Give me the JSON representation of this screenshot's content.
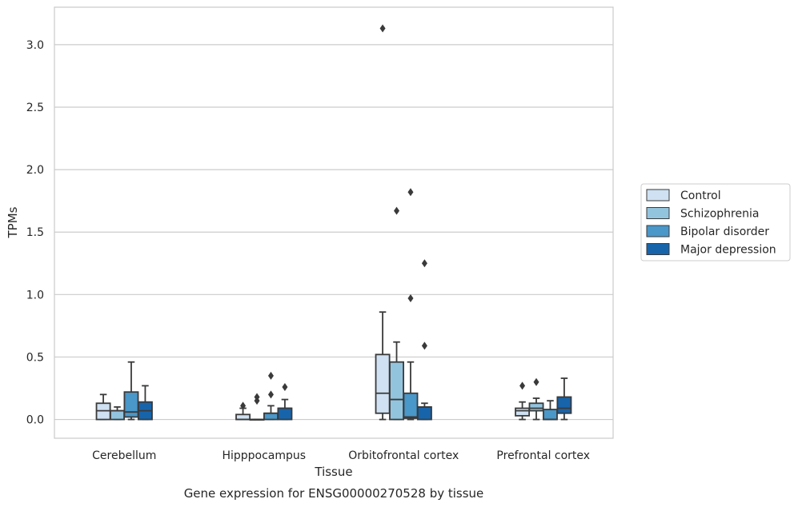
{
  "caption": "Gene expression for ENSG00000270528 by tissue",
  "colors": {
    "Control": "#cfe1f2",
    "Schizophrenia": "#93c4de",
    "Bipolar disorder": "#4a97c9",
    "Major depression": "#1764ab",
    "edge": "#3a3a3a",
    "grid": "#cccccc"
  },
  "chart_data": {
    "type": "box",
    "xlabel": "Tissue",
    "ylabel": "TPMs",
    "ylim": [
      -0.15,
      3.3
    ],
    "yticks": [
      "0.0",
      "0.5",
      "1.0",
      "1.5",
      "2.0",
      "2.5",
      "3.0"
    ],
    "grid": "horizontal",
    "legend_position": "right",
    "categories": [
      "Cerebellum",
      "Hipppocampus",
      "Orbitofrontal cortex",
      "Prefrontal cortex"
    ],
    "series": [
      {
        "name": "Control",
        "boxes": [
          {
            "whislo": 0.0,
            "q1": 0.0,
            "med": 0.07,
            "q3": 0.13,
            "whishi": 0.2,
            "fliers": []
          },
          {
            "whislo": 0.0,
            "q1": 0.0,
            "med": 0.0,
            "q3": 0.04,
            "whishi": 0.09,
            "fliers": [
              0.11
            ]
          },
          {
            "whislo": 0.0,
            "q1": 0.05,
            "med": 0.21,
            "q3": 0.52,
            "whishi": 0.86,
            "fliers": [
              3.13
            ]
          },
          {
            "whislo": 0.0,
            "q1": 0.03,
            "med": 0.07,
            "q3": 0.09,
            "whishi": 0.14,
            "fliers": [
              0.27
            ]
          }
        ]
      },
      {
        "name": "Schizophrenia",
        "boxes": [
          {
            "whislo": 0.0,
            "q1": 0.0,
            "med": 0.07,
            "q3": 0.07,
            "whishi": 0.1,
            "fliers": []
          },
          {
            "whislo": 0.0,
            "q1": 0.0,
            "med": 0.0,
            "q3": 0.0,
            "whishi": 0.0,
            "fliers": [
              0.15,
              0.18
            ]
          },
          {
            "whislo": 0.0,
            "q1": 0.0,
            "med": 0.16,
            "q3": 0.46,
            "whishi": 0.62,
            "fliers": [
              1.67
            ]
          },
          {
            "whislo": 0.0,
            "q1": 0.07,
            "med": 0.09,
            "q3": 0.13,
            "whishi": 0.17,
            "fliers": [
              0.3
            ]
          }
        ]
      },
      {
        "name": "Bipolar disorder",
        "boxes": [
          {
            "whislo": 0.0,
            "q1": 0.02,
            "med": 0.06,
            "q3": 0.22,
            "whishi": 0.46,
            "fliers": []
          },
          {
            "whislo": 0.0,
            "q1": 0.0,
            "med": 0.05,
            "q3": 0.05,
            "whishi": 0.11,
            "fliers": [
              0.2,
              0.35
            ]
          },
          {
            "whislo": 0.0,
            "q1": 0.01,
            "med": 0.02,
            "q3": 0.21,
            "whishi": 0.46,
            "fliers": [
              0.97,
              1.82
            ]
          },
          {
            "whislo": 0.0,
            "q1": 0.0,
            "med": 0.0,
            "q3": 0.08,
            "whishi": 0.15,
            "fliers": []
          }
        ]
      },
      {
        "name": "Major depression",
        "boxes": [
          {
            "whislo": 0.0,
            "q1": 0.0,
            "med": 0.07,
            "q3": 0.14,
            "whishi": 0.27,
            "fliers": []
          },
          {
            "whislo": 0.0,
            "q1": 0.0,
            "med": 0.09,
            "q3": 0.09,
            "whishi": 0.16,
            "fliers": [
              0.26
            ]
          },
          {
            "whislo": 0.0,
            "q1": 0.0,
            "med": 0.1,
            "q3": 0.1,
            "whishi": 0.13,
            "fliers": [
              0.59,
              1.25
            ]
          },
          {
            "whislo": 0.0,
            "q1": 0.05,
            "med": 0.09,
            "q3": 0.18,
            "whishi": 0.33,
            "fliers": []
          }
        ]
      }
    ]
  }
}
